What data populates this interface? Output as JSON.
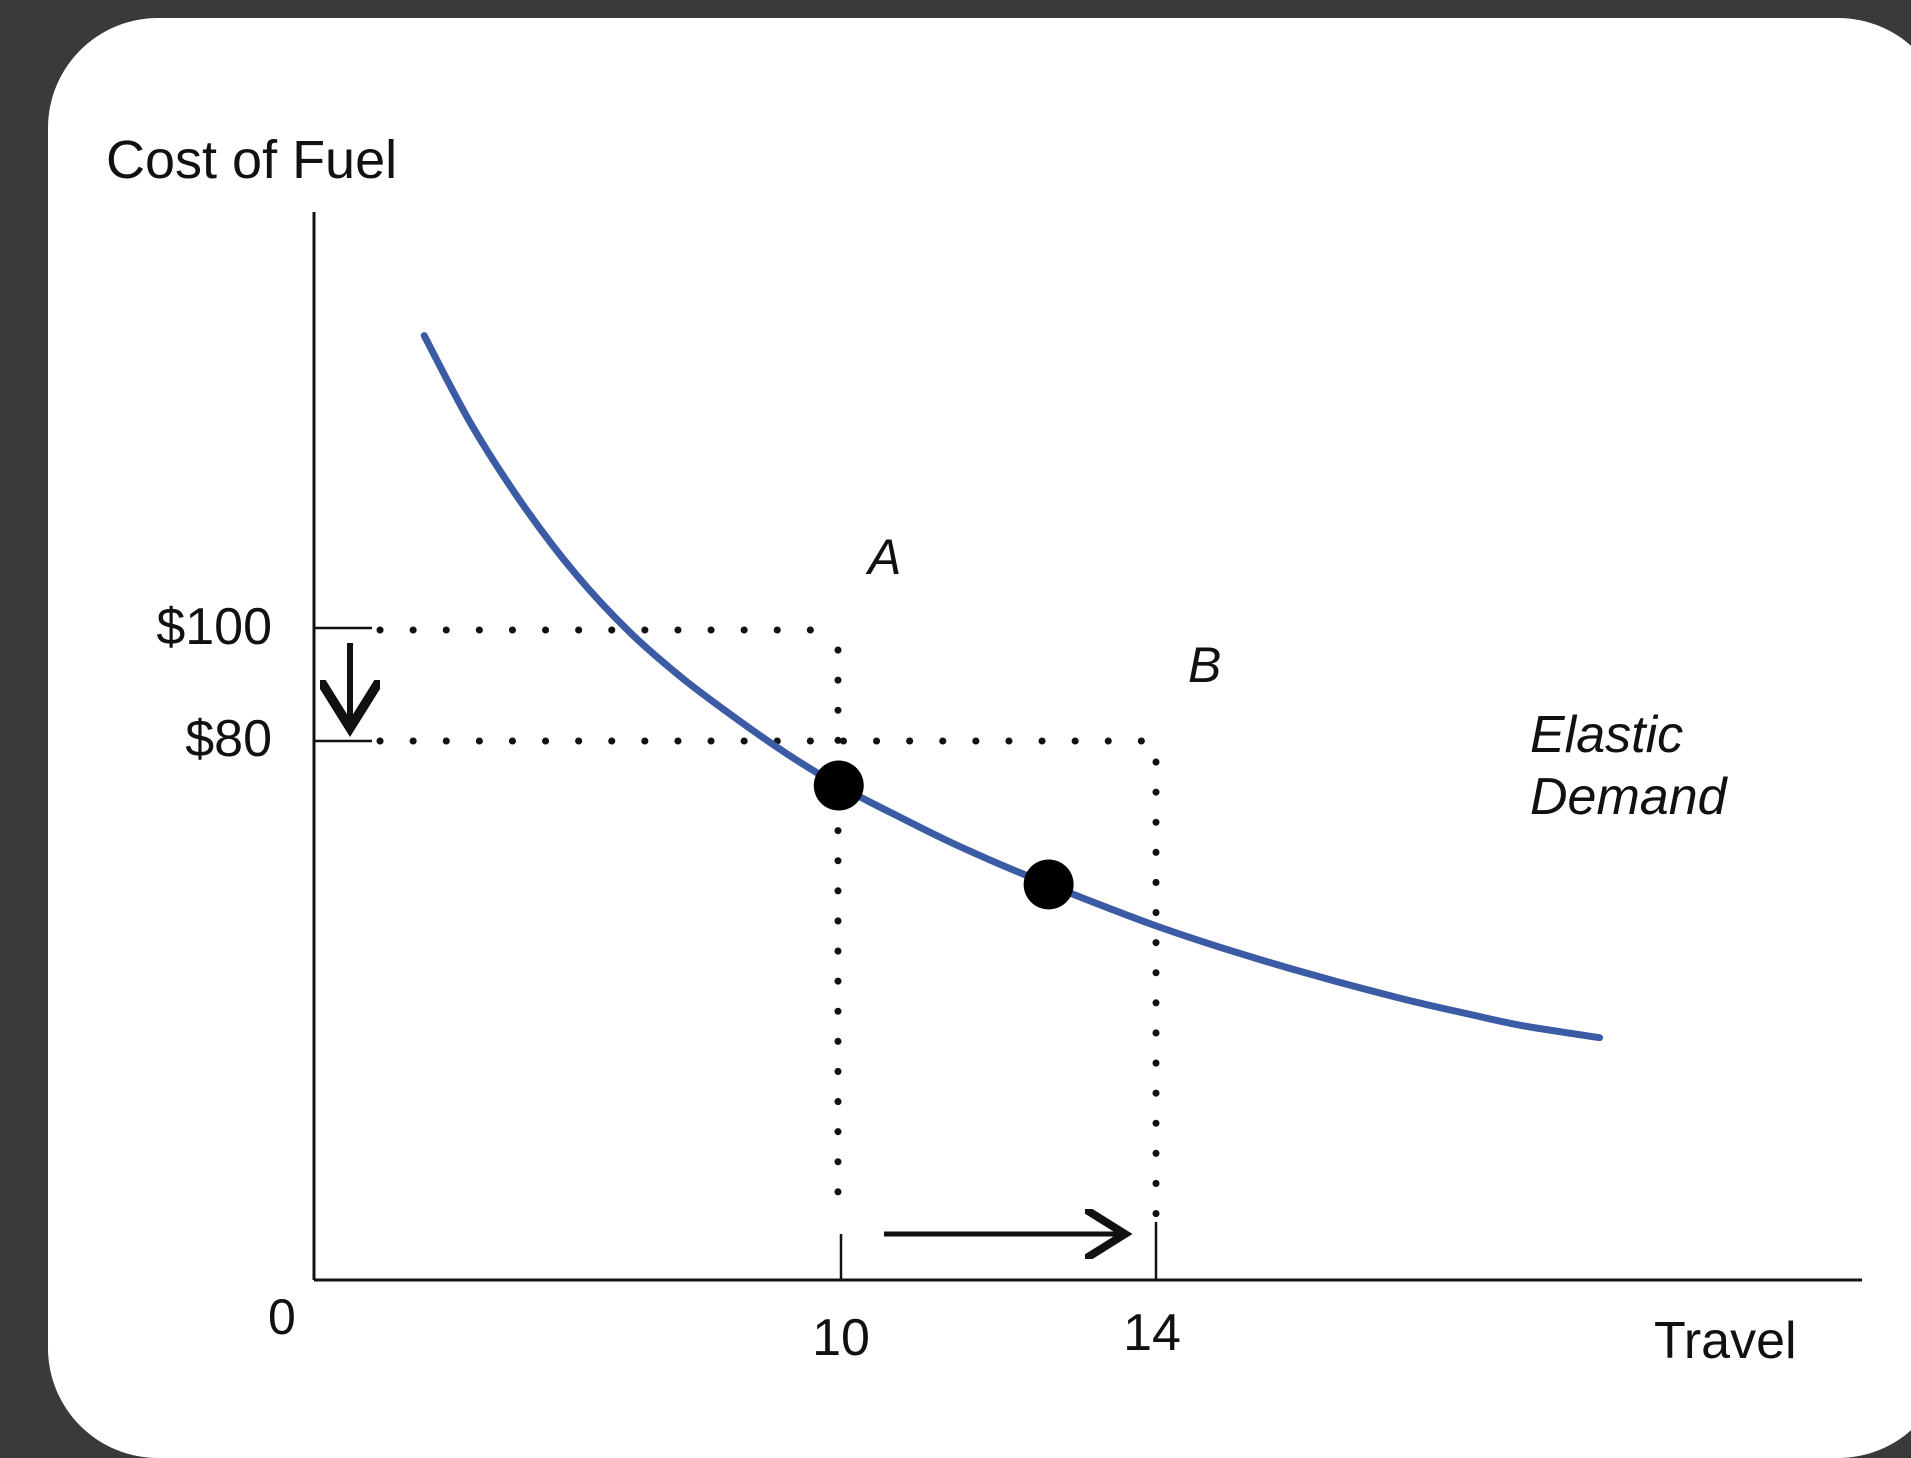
{
  "chart_data": {
    "type": "line",
    "ylabel": "Cost of Fuel",
    "xlabel": "Travel",
    "origin_label": "0",
    "x_ticks": [
      {
        "value": 10,
        "label": "10"
      },
      {
        "value": 14,
        "label": "14"
      }
    ],
    "y_ticks": [
      {
        "value": 100,
        "label": "$100"
      },
      {
        "value": 80,
        "label": "$80"
      }
    ],
    "xlim": [
      0,
      29.5
    ],
    "ylim": [
      0,
      216
    ],
    "series": [
      {
        "name": "Elastic Demand",
        "name_lines": [
          "Elastic",
          "Demand"
        ],
        "color": "#3b5ba5",
        "x": [
          2.1,
          3,
          4,
          5,
          6,
          7,
          8,
          9,
          10,
          11,
          12,
          13,
          14,
          15,
          16,
          17,
          18,
          19,
          20,
          21,
          22,
          23,
          24.5
        ],
        "y": [
          191,
          173,
          156.5,
          142.6,
          131.2,
          121.9,
          113.9,
          106.5,
          100,
          94.5,
          89.2,
          84.4,
          80,
          75.8,
          71.8,
          68.2,
          64.9,
          61.8,
          58.9,
          56.2,
          53.8,
          51.5,
          49
        ]
      }
    ],
    "points": [
      {
        "label": "A",
        "x": 10,
        "y": 100
      },
      {
        "label": "B",
        "x": 14,
        "y": 80
      }
    ],
    "annotations": [
      {
        "type": "arrow",
        "direction": "down",
        "meaning": "price falls from $100 to $80"
      },
      {
        "type": "arrow",
        "direction": "right",
        "meaning": "travel rises from 10 to 14"
      }
    ],
    "grid": false
  }
}
